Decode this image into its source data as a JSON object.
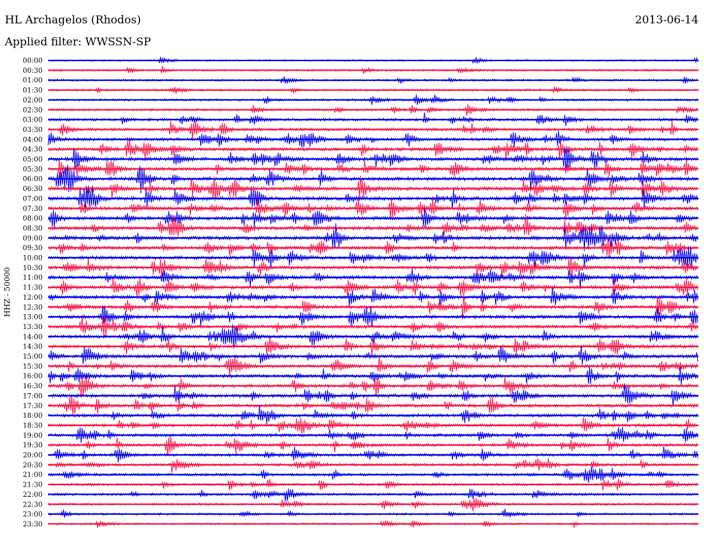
{
  "header": {
    "station": "HL Archagelos (Rhodos)",
    "date": "2013-06-14",
    "filter": "Applied filter: WWSSN-SP"
  },
  "chart_data": {
    "type": "line",
    "ylabel": "HHZ - 50000",
    "tick_labels": [
      "00:00",
      "00:30",
      "01:00",
      "01:30",
      "02:00",
      "02:30",
      "03:00",
      "03:30",
      "04:00",
      "04:30",
      "05:00",
      "05:30",
      "06:00",
      "06:30",
      "07:00",
      "07:30",
      "08:00",
      "08:30",
      "09:00",
      "09:30",
      "10:00",
      "10:30",
      "11:00",
      "11:30",
      "12:00",
      "12:30",
      "13:00",
      "13:30",
      "14:00",
      "14:30",
      "15:00",
      "15:30",
      "16:00",
      "16:30",
      "17:00",
      "17:30",
      "18:00",
      "18:30",
      "19:00",
      "19:30",
      "20:00",
      "20:30",
      "21:00",
      "21:30",
      "22:00",
      "22:30",
      "23:00",
      "23:30"
    ],
    "trace_colors": [
      "#0000e0",
      "#f01446"
    ],
    "activity": [
      0.05,
      0.1,
      0.15,
      0.2,
      0.25,
      0.3,
      0.5,
      0.6,
      0.7,
      0.8,
      0.9,
      0.9,
      0.9,
      0.9,
      0.9,
      0.9,
      0.9,
      0.9,
      0.9,
      0.85,
      0.85,
      0.85,
      0.85,
      0.85,
      0.8,
      0.8,
      0.8,
      0.8,
      0.8,
      0.8,
      0.8,
      0.8,
      0.75,
      0.75,
      0.75,
      0.75,
      0.7,
      0.7,
      0.7,
      0.65,
      0.6,
      0.55,
      0.5,
      0.45,
      0.4,
      0.3,
      0.2,
      0.15
    ]
  }
}
